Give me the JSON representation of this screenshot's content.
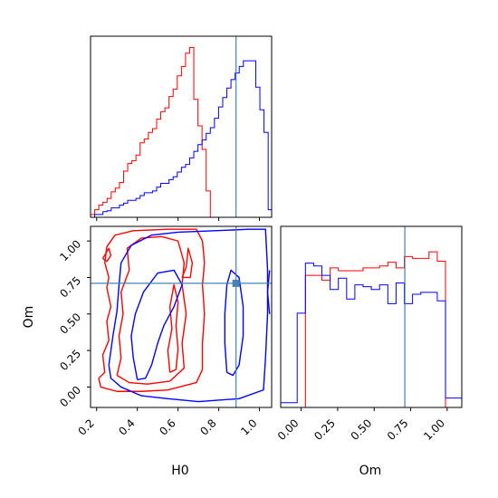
{
  "colors": {
    "red": "#ff0000",
    "blue": "#0000ff",
    "truth": "#4682b4",
    "axes": "#000000"
  },
  "chart_data": [
    {
      "type": "histogram",
      "panel": "top-left",
      "variable": "H0",
      "xlim": [
        0.17,
        1.06
      ],
      "x_ticks": [
        0.2,
        0.4,
        0.6,
        0.8,
        1.0
      ],
      "y_ticks_shown": false,
      "truth_x": 0.885,
      "bin_edges": [
        0.17,
        0.1903,
        0.2106,
        0.2309,
        0.2512,
        0.2715,
        0.2918,
        0.3121,
        0.3324,
        0.3527,
        0.373,
        0.3933,
        0.4136,
        0.4339,
        0.4542,
        0.4745,
        0.4948,
        0.5151,
        0.5354,
        0.5557,
        0.576,
        0.5963,
        0.6166,
        0.6369,
        0.6572,
        0.6775,
        0.6978,
        0.7181,
        0.7384,
        0.7587,
        0.779,
        0.7993,
        0.8196,
        0.8399,
        0.8602,
        0.8805,
        0.9008,
        0.9211,
        0.9414,
        0.9617,
        0.982,
        1.0023,
        1.0226,
        1.0429,
        1.06
      ],
      "ylim": [
        0,
        192
      ],
      "series": [
        {
          "color": "red",
          "values": [
            3,
            8,
            13,
            16,
            20,
            27,
            31,
            37,
            49,
            57,
            60,
            66,
            79,
            83,
            90,
            94,
            104,
            112,
            116,
            128,
            136,
            150,
            160,
            174,
            180,
            125,
            97,
            72,
            28,
            0,
            0,
            0,
            0,
            0,
            0,
            0,
            0,
            0,
            0,
            0,
            0,
            0,
            0,
            0
          ]
        },
        {
          "color": "blue",
          "values": [
            0,
            3,
            3,
            6,
            7,
            10,
            10,
            13,
            15,
            18,
            18,
            20,
            23,
            26,
            26,
            28,
            32,
            36,
            36,
            40,
            43,
            48,
            53,
            56,
            63,
            70,
            77,
            82,
            89,
            95,
            105,
            117,
            127,
            137,
            146,
            153,
            160,
            166,
            166,
            166,
            138,
            114,
            90,
            8
          ]
        }
      ]
    },
    {
      "type": "contour",
      "panel": "bottom-left",
      "x_variable": "H0",
      "y_variable": "Om",
      "xlabel": "H0",
      "ylabel": "Om",
      "xlim": [
        0.17,
        1.06
      ],
      "ylim": [
        -0.14,
        1.1
      ],
      "x_ticks": [
        "0.2",
        "0.4",
        "0.6",
        "0.8",
        "1.0"
      ],
      "y_ticks": [
        "0.00",
        "0.25",
        "0.50",
        "0.75",
        "1.00"
      ],
      "truth": [
        0.885,
        0.71
      ],
      "series": [
        {
          "color": "red",
          "contours": [
            [
              [
                0.21,
                0.06
              ],
              [
                0.24,
                0.1
              ],
              [
                0.23,
                0.22
              ],
              [
                0.26,
                0.32
              ],
              [
                0.25,
                0.45
              ],
              [
                0.27,
                0.55
              ],
              [
                0.25,
                0.68
              ],
              [
                0.26,
                0.75
              ],
              [
                0.24,
                0.85
              ],
              [
                0.25,
                0.96
              ],
              [
                0.29,
                1.04
              ],
              [
                0.38,
                1.07
              ],
              [
                0.55,
                1.08
              ],
              [
                0.69,
                1.08
              ],
              [
                0.72,
                1.0
              ],
              [
                0.73,
                0.85
              ],
              [
                0.72,
                0.7
              ],
              [
                0.73,
                0.5
              ],
              [
                0.72,
                0.3
              ],
              [
                0.72,
                0.12
              ],
              [
                0.69,
                0.03
              ],
              [
                0.55,
                -0.02
              ],
              [
                0.42,
                -0.03
              ],
              [
                0.3,
                -0.03
              ],
              [
                0.22,
                0.0
              ],
              [
                0.21,
                0.06
              ]
            ],
            [
              [
                0.3,
                0.08
              ],
              [
                0.32,
                0.2
              ],
              [
                0.31,
                0.35
              ],
              [
                0.33,
                0.5
              ],
              [
                0.32,
                0.65
              ],
              [
                0.36,
                0.8
              ],
              [
                0.35,
                0.95
              ],
              [
                0.42,
                1.02
              ],
              [
                0.52,
                1.03
              ],
              [
                0.6,
                1.0
              ],
              [
                0.63,
                0.85
              ],
              [
                0.62,
                0.7
              ],
              [
                0.64,
                0.5
              ],
              [
                0.62,
                0.3
              ],
              [
                0.63,
                0.13
              ],
              [
                0.56,
                0.04
              ],
              [
                0.45,
                0.02
              ],
              [
                0.36,
                0.03
              ],
              [
                0.3,
                0.08
              ]
            ],
            [
              [
                0.56,
                0.1
              ],
              [
                0.55,
                0.25
              ],
              [
                0.57,
                0.4
              ],
              [
                0.56,
                0.55
              ],
              [
                0.58,
                0.7
              ],
              [
                0.6,
                0.58
              ],
              [
                0.59,
                0.42
              ],
              [
                0.6,
                0.26
              ],
              [
                0.59,
                0.12
              ],
              [
                0.56,
                0.1
              ]
            ],
            [
              [
                0.62,
                0.75
              ],
              [
                0.64,
                0.82
              ],
              [
                0.65,
                0.95
              ],
              [
                0.67,
                0.85
              ],
              [
                0.66,
                0.75
              ],
              [
                0.62,
                0.75
              ]
            ],
            [
              [
                0.23,
                0.88
              ],
              [
                0.26,
                0.95
              ],
              [
                0.27,
                0.9
              ],
              [
                0.25,
                0.86
              ],
              [
                0.23,
                0.88
              ]
            ]
          ]
        },
        {
          "color": "blue",
          "contours": [
            [
              [
                0.26,
                0.15
              ],
              [
                0.28,
                0.35
              ],
              [
                0.3,
                0.52
              ],
              [
                0.31,
                0.7
              ],
              [
                0.32,
                0.85
              ],
              [
                0.37,
                0.97
              ],
              [
                0.47,
                1.04
              ],
              [
                0.6,
                1.06
              ],
              [
                0.78,
                1.07
              ],
              [
                0.95,
                1.08
              ],
              [
                1.03,
                1.08
              ],
              [
                1.04,
                0.8
              ],
              [
                1.04,
                0.5
              ],
              [
                1.03,
                0.2
              ],
              [
                1.02,
                -0.02
              ],
              [
                0.9,
                -0.08
              ],
              [
                0.7,
                -0.1
              ],
              [
                0.55,
                -0.08
              ],
              [
                0.42,
                -0.06
              ],
              [
                0.32,
                0.0
              ],
              [
                0.27,
                0.06
              ],
              [
                0.26,
                0.15
              ]
            ],
            [
              [
                0.4,
                0.05
              ],
              [
                0.38,
                0.2
              ],
              [
                0.37,
                0.35
              ],
              [
                0.39,
                0.5
              ],
              [
                0.43,
                0.65
              ],
              [
                0.5,
                0.78
              ],
              [
                0.58,
                0.8
              ],
              [
                0.62,
                0.7
              ],
              [
                0.58,
                0.55
              ],
              [
                0.53,
                0.42
              ],
              [
                0.5,
                0.3
              ],
              [
                0.47,
                0.15
              ],
              [
                0.44,
                0.06
              ],
              [
                0.4,
                0.05
              ]
            ],
            [
              [
                0.84,
                0.1
              ],
              [
                0.83,
                0.3
              ],
              [
                0.83,
                0.5
              ],
              [
                0.84,
                0.7
              ],
              [
                0.86,
                0.8
              ],
              [
                0.9,
                0.75
              ],
              [
                0.92,
                0.55
              ],
              [
                0.92,
                0.35
              ],
              [
                0.9,
                0.15
              ],
              [
                0.87,
                0.08
              ],
              [
                0.84,
                0.1
              ]
            ],
            [
              [
                1.05,
                0.5
              ],
              [
                1.04,
                0.65
              ],
              [
                1.05,
                0.8
              ]
            ]
          ]
        }
      ]
    },
    {
      "type": "histogram",
      "panel": "bottom-right",
      "variable": "Om",
      "xlabel": "Om",
      "xlim": [
        -0.14,
        1.1
      ],
      "x_ticks": [
        "0.00",
        "0.25",
        "0.50",
        "0.75",
        "1.00"
      ],
      "y_ticks_shown": false,
      "truth_x": 0.71,
      "bin_edges": [
        -0.14,
        -0.0836,
        -0.0271,
        0.0293,
        0.0857,
        0.1421,
        0.1986,
        0.255,
        0.3114,
        0.3679,
        0.4243,
        0.4807,
        0.5371,
        0.5936,
        0.65,
        0.7064,
        0.7629,
        0.8193,
        0.8757,
        0.9321,
        0.9886,
        1.045,
        1.1
      ],
      "ylim": [
        0,
        192
      ],
      "series": [
        {
          "color": "red",
          "values": [
            0,
            0,
            0,
            140,
            140,
            135,
            148,
            145,
            145,
            145,
            148,
            148,
            150,
            154,
            148,
            160,
            158,
            158,
            165,
            155,
            0,
            0
          ]
        },
        {
          "color": "blue",
          "values": [
            5,
            5,
            100,
            153,
            150,
            140,
            125,
            137,
            115,
            130,
            128,
            125,
            130,
            110,
            132,
            110,
            120,
            122,
            122,
            113,
            10,
            10
          ]
        }
      ]
    }
  ]
}
